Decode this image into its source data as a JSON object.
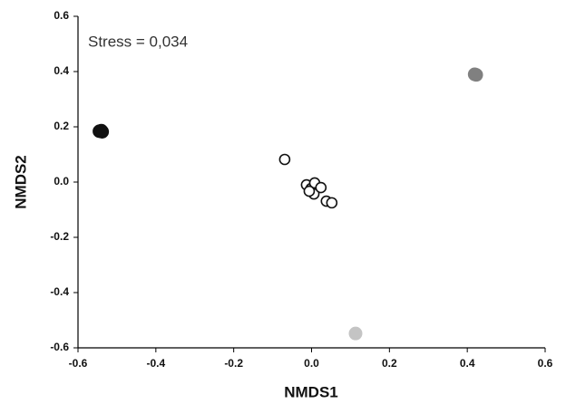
{
  "chart_data": {
    "type": "scatter",
    "annotation": "Stress = 0,034",
    "x_label": "NMDS1",
    "y_label": "NMDS2",
    "xlim": [
      -0.6,
      0.6
    ],
    "xticks": [
      -0.6,
      -0.4,
      -0.2,
      {
        "value": 0,
        "label": "0.0"
      },
      0.2,
      0.4,
      0.6
    ],
    "ylim": [
      -0.6,
      0.6
    ],
    "yticks": [
      -0.6,
      -0.4,
      -0.2,
      {
        "value": 0,
        "label": "0.0"
      },
      0.2,
      0.4,
      0.6
    ],
    "grid": false,
    "series": [
      {
        "color": "#111111",
        "marker": "filled",
        "x": [
          -0.545,
          -0.54,
          -0.538
        ],
        "values": [
          0.184,
          0.186,
          0.182
        ]
      },
      {
        "color": "#808080",
        "marker": "filled",
        "x": [
          0.419,
          0.423
        ],
        "values": [
          0.39,
          0.388
        ]
      },
      {
        "color": "#c4c4c4",
        "marker": "filled",
        "x": [
          0.113
        ],
        "values": [
          -0.548
        ]
      },
      {
        "color": "#111111",
        "marker": "open",
        "x": [
          -0.069,
          -0.013,
          -0.001,
          0.008,
          0.006,
          0.024,
          0.038,
          0.052,
          -0.006
        ],
        "values": [
          0.082,
          -0.01,
          -0.023,
          -0.003,
          -0.043,
          -0.02,
          -0.069,
          -0.075,
          -0.033
        ]
      }
    ]
  }
}
